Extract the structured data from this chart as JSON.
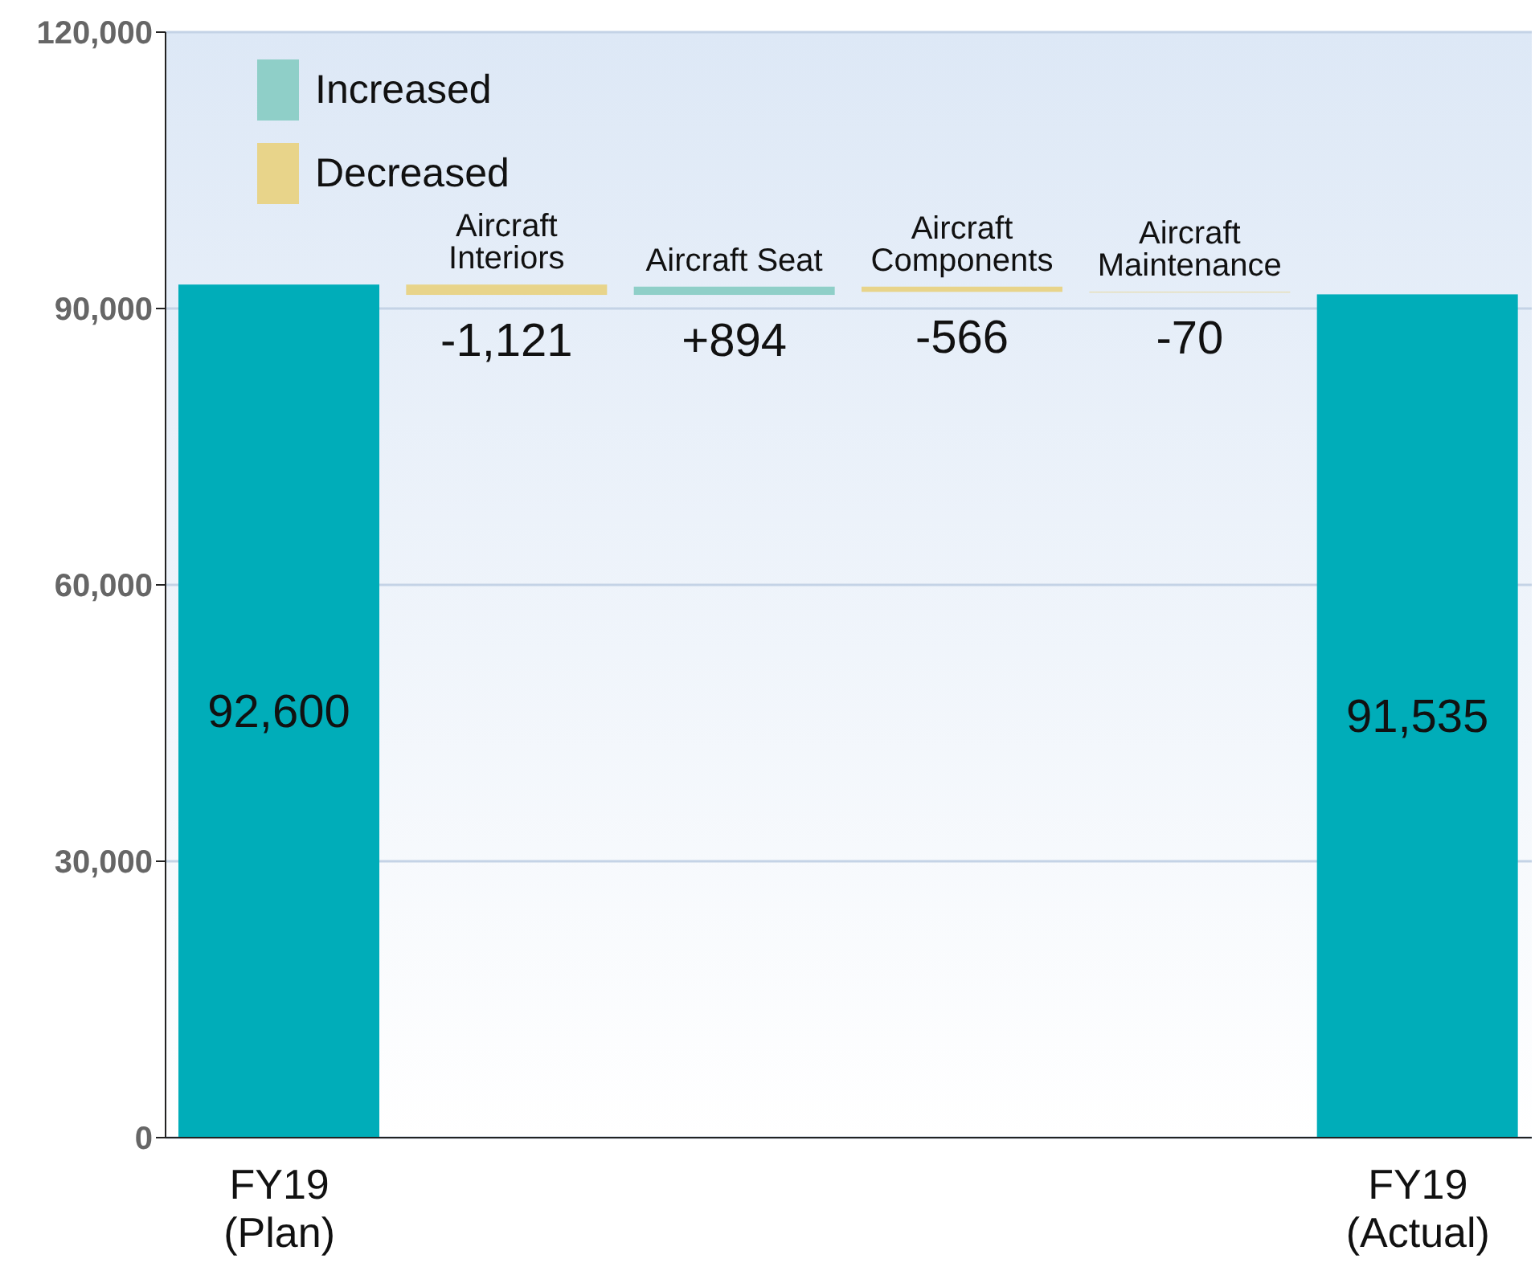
{
  "chart_data": {
    "type": "bar",
    "categories": [
      "FY19\n(Plan)",
      "Aircraft\nInteriors",
      "Aircraft Seat",
      "Aircraft\nComponents",
      "Aircraft\nMaintenance",
      "FY19\n(Actual)"
    ],
    "series": [
      {
        "name": "Increased",
        "color": "#8fcfc8",
        "values": [
          null,
          null,
          894,
          null,
          null,
          null
        ],
        "base": [
          null,
          null,
          91479,
          null,
          null,
          null
        ]
      },
      {
        "name": "Decreased",
        "color": "#e8d48a",
        "values": [
          null,
          -1121,
          null,
          -566,
          -70,
          null
        ],
        "base": [
          null,
          92600,
          null,
          92373,
          91807,
          null
        ]
      },
      {
        "color": "#00adb9",
        "values": [
          92600,
          null,
          null,
          null,
          null,
          91535
        ],
        "base": [
          0,
          null,
          null,
          null,
          null,
          0
        ]
      }
    ],
    "value_labels": [
      "92,600",
      "-1,121",
      "+894",
      "-566",
      "-70",
      "91,535"
    ],
    "ylim": [
      0,
      120000
    ],
    "yticks": [
      {
        "value": 0,
        "label": "0"
      },
      {
        "value": 30000,
        "label": "30,000"
      },
      {
        "value": 60000,
        "label": "60,000"
      },
      {
        "value": 90000,
        "label": "90,000"
      },
      {
        "value": 120000,
        "label": "120,000"
      }
    ],
    "grid": "y",
    "legend": "top left"
  }
}
